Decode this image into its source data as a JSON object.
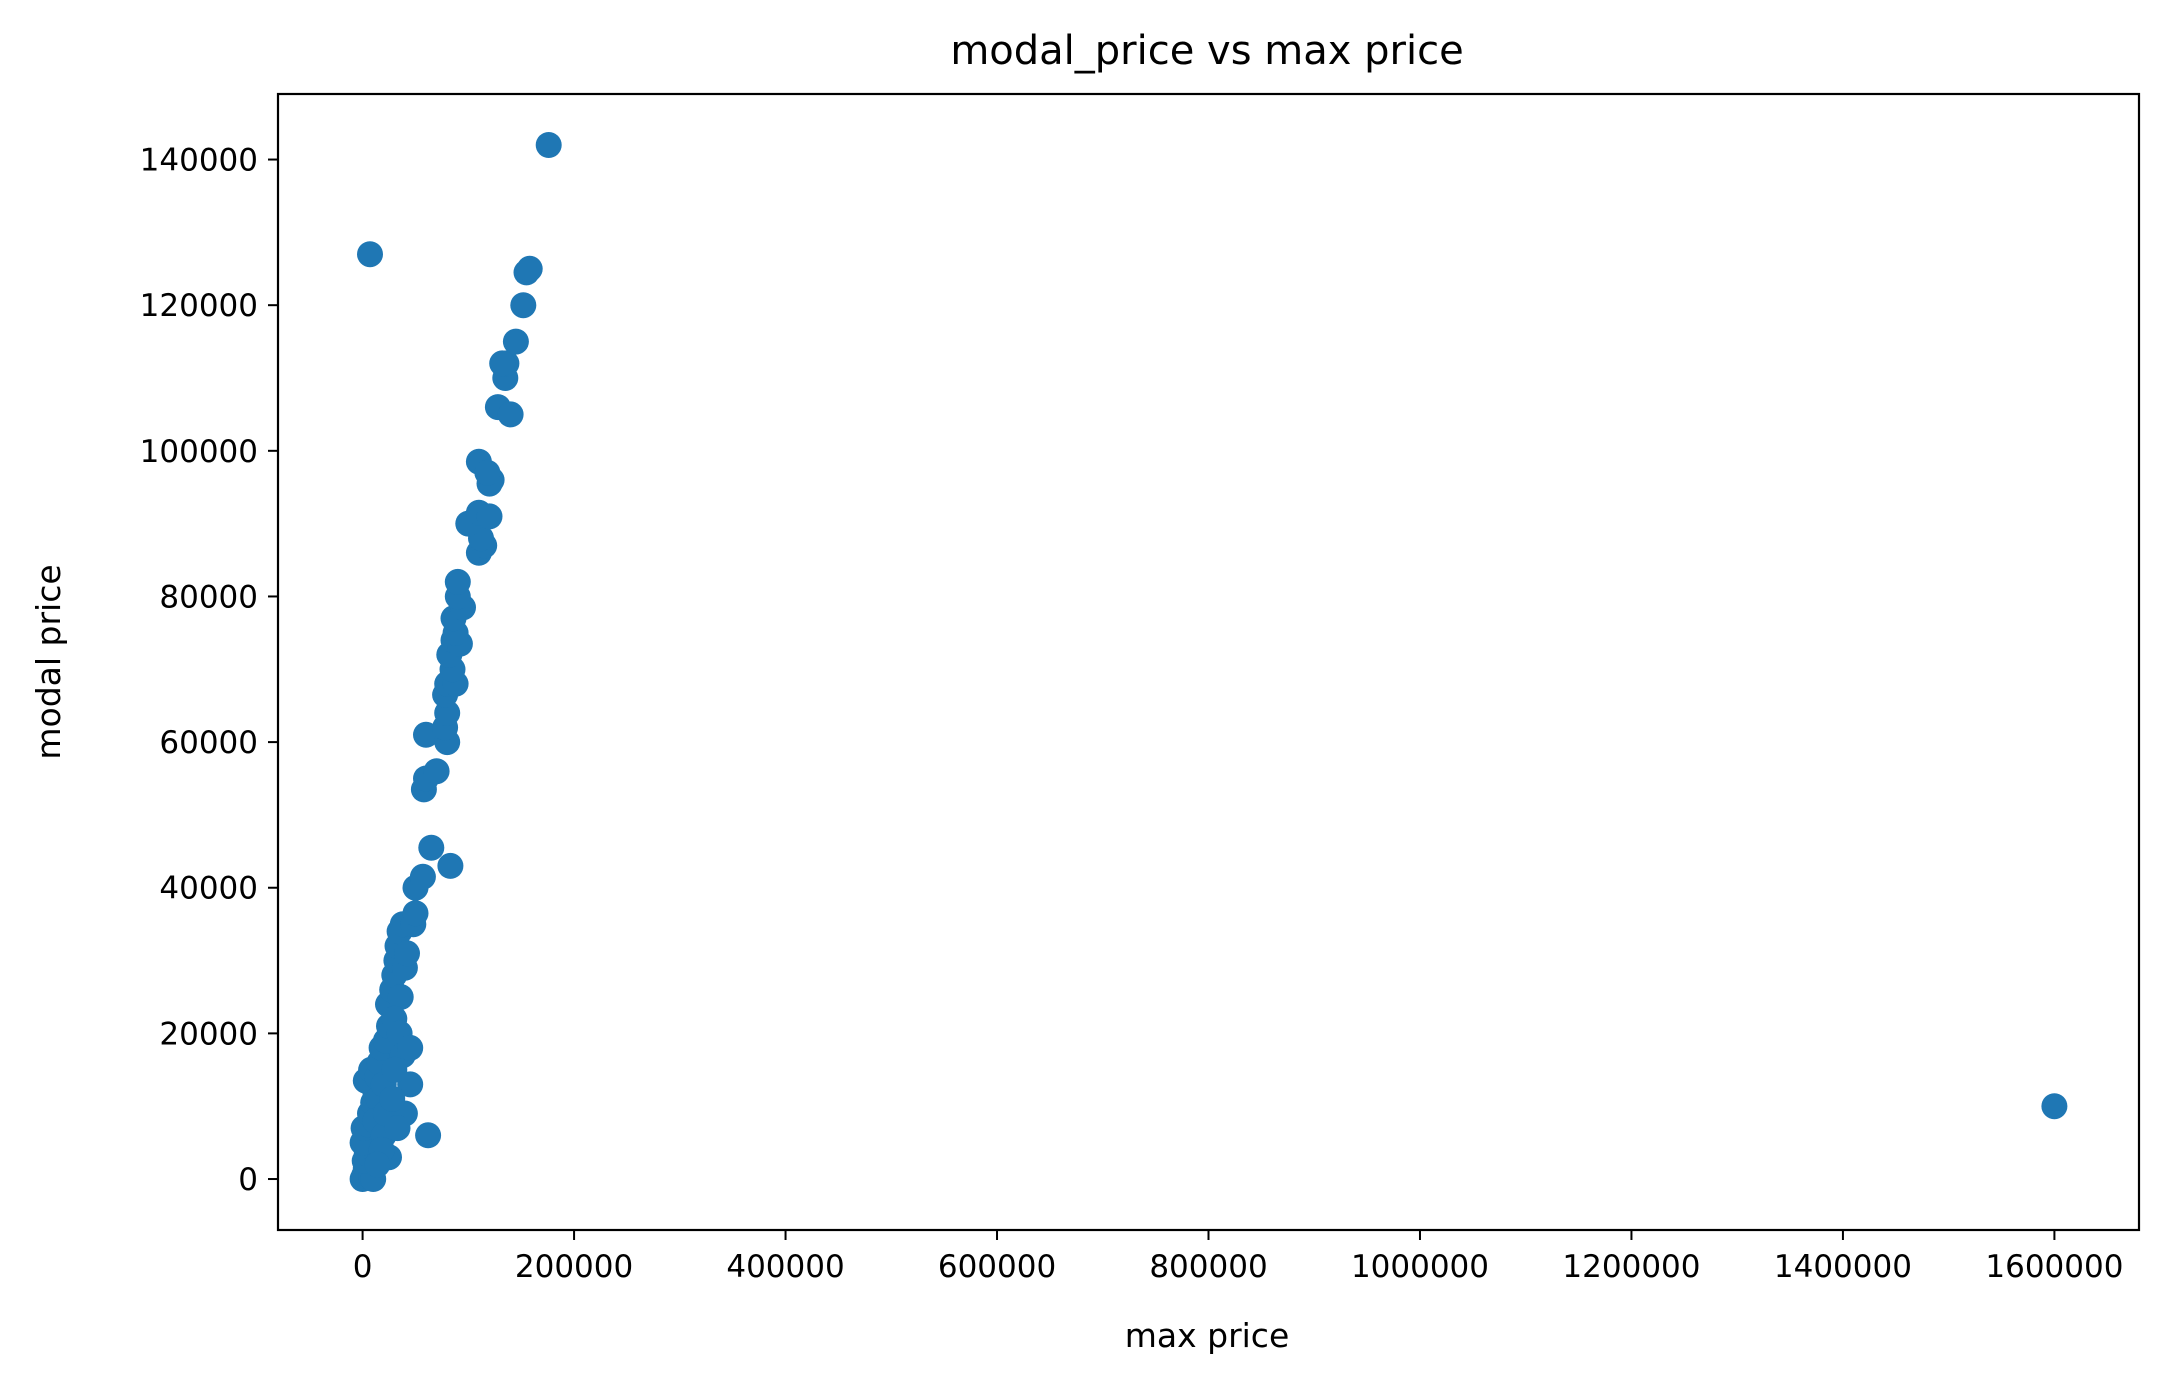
{
  "chart_data": {
    "type": "scatter",
    "title": "modal_price vs max price",
    "xlabel": "max price",
    "ylabel": "modal price",
    "xlim": [
      -80000,
      1680000
    ],
    "ylim": [
      -7000,
      149000
    ],
    "xticks": [
      0,
      200000,
      400000,
      600000,
      800000,
      1000000,
      1200000,
      1400000,
      1600000
    ],
    "yticks": [
      0,
      20000,
      40000,
      60000,
      80000,
      100000,
      120000,
      140000
    ],
    "grid": false,
    "marker_color": "#1f77b4",
    "series": [
      {
        "points": [
          [
            0,
            0
          ],
          [
            1500,
            500
          ],
          [
            3000,
            1500
          ],
          [
            5000,
            800
          ],
          [
            8000,
            300
          ],
          [
            10000,
            0
          ],
          [
            2000,
            2500
          ],
          [
            4000,
            3500
          ],
          [
            6000,
            4500
          ],
          [
            9000,
            5500
          ],
          [
            0,
            5000
          ],
          [
            1000,
            7000
          ],
          [
            5000,
            7500
          ],
          [
            7000,
            9000
          ],
          [
            10000,
            10500
          ],
          [
            12000,
            12000
          ],
          [
            3000,
            13500
          ],
          [
            8000,
            15000
          ],
          [
            14000,
            14000
          ],
          [
            16000,
            16000
          ],
          [
            18000,
            18000
          ],
          [
            15000,
            11000
          ],
          [
            12000,
            8000
          ],
          [
            20000,
            6000
          ],
          [
            25000,
            3000
          ],
          [
            22000,
            9000
          ],
          [
            20000,
            13000
          ],
          [
            22000,
            19000
          ],
          [
            25000,
            21000
          ],
          [
            24000,
            24000
          ],
          [
            28000,
            26000
          ],
          [
            30000,
            28000
          ],
          [
            32000,
            30000
          ],
          [
            33000,
            32000
          ],
          [
            35000,
            34000
          ],
          [
            38000,
            35000
          ],
          [
            40000,
            29000
          ],
          [
            42000,
            31000
          ],
          [
            36000,
            25000
          ],
          [
            30000,
            22000
          ],
          [
            35000,
            20000
          ],
          [
            38000,
            17000
          ],
          [
            45000,
            18000
          ],
          [
            45000,
            13000
          ],
          [
            40000,
            9000
          ],
          [
            30000,
            15000
          ],
          [
            28000,
            11000
          ],
          [
            33000,
            7000
          ],
          [
            18000,
            4000
          ],
          [
            14000,
            2000
          ],
          [
            48000,
            35000
          ],
          [
            50000,
            36500
          ],
          [
            50000,
            40000
          ],
          [
            57000,
            41500
          ],
          [
            65000,
            45500
          ],
          [
            83000,
            43000
          ],
          [
            62000,
            6000
          ],
          [
            58000,
            53500
          ],
          [
            60000,
            55000
          ],
          [
            70000,
            56000
          ],
          [
            60000,
            61000
          ],
          [
            80000,
            60000
          ],
          [
            78000,
            62000
          ],
          [
            80000,
            64000
          ],
          [
            78000,
            66500
          ],
          [
            80000,
            68000
          ],
          [
            88000,
            68000
          ],
          [
            85000,
            70000
          ],
          [
            82000,
            72000
          ],
          [
            86000,
            74000
          ],
          [
            92000,
            73500
          ],
          [
            88000,
            75000
          ],
          [
            86000,
            77000
          ],
          [
            95000,
            78500
          ],
          [
            90000,
            80000
          ],
          [
            90000,
            82000
          ],
          [
            110000,
            86000
          ],
          [
            115000,
            87000
          ],
          [
            112000,
            88000
          ],
          [
            100000,
            90000
          ],
          [
            110000,
            91500
          ],
          [
            120000,
            91000
          ],
          [
            110000,
            98500
          ],
          [
            120000,
            95500
          ],
          [
            122000,
            96000
          ],
          [
            118000,
            97000
          ],
          [
            128000,
            106000
          ],
          [
            140000,
            105000
          ],
          [
            135000,
            110000
          ],
          [
            136000,
            112000
          ],
          [
            132000,
            112000
          ],
          [
            145000,
            115000
          ],
          [
            152000,
            120000
          ],
          [
            155000,
            124500
          ],
          [
            158000,
            125000
          ],
          [
            176000,
            142000
          ],
          [
            7000,
            127000
          ],
          [
            1600000,
            10000
          ]
        ]
      }
    ]
  }
}
